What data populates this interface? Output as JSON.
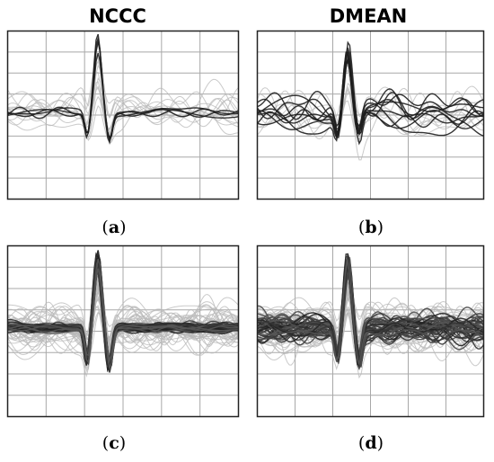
{
  "column_titles": {
    "left": "NCCC",
    "right": "DMEAN"
  },
  "panel_labels": {
    "a": "a",
    "b": "b",
    "c": "c",
    "d": "d"
  },
  "chart_data": [
    {
      "type": "line",
      "panel": "a",
      "column": "NCCC",
      "grid": true,
      "grid_columns": 6,
      "grid_rows": 8,
      "highlighted_traces": 4,
      "background_traces": 12,
      "spike_peak_position": 0.39,
      "spike_peak_height": 0.83,
      "spike_trough_depth": 0.28,
      "highlighted_spread": 0.12,
      "background_spread": 0.45,
      "seed": 11
    },
    {
      "type": "line",
      "panel": "b",
      "column": "DMEAN",
      "grid": true,
      "grid_columns": 6,
      "grid_rows": 8,
      "highlighted_traces": 9,
      "background_traces": 8,
      "spike_peak_position": 0.4,
      "spike_peak_height": 0.7,
      "spike_trough_depth": 0.25,
      "highlighted_spread": 0.38,
      "background_spread": 0.45,
      "seed": 23
    },
    {
      "type": "line",
      "panel": "c",
      "column": "NCCC",
      "grid": true,
      "grid_columns": 6,
      "grid_rows": 8,
      "highlighted_traces": 45,
      "background_traces": 40,
      "spike_peak_position": 0.39,
      "spike_peak_height": 0.8,
      "spike_trough_depth": 0.4,
      "highlighted_spread": 0.1,
      "background_spread": 0.45,
      "seed": 37
    },
    {
      "type": "line",
      "panel": "d",
      "column": "DMEAN",
      "grid": true,
      "grid_columns": 6,
      "grid_rows": 8,
      "highlighted_traces": 40,
      "background_traces": 40,
      "spike_peak_position": 0.4,
      "spike_peak_height": 0.78,
      "spike_trough_depth": 0.35,
      "highlighted_spread": 0.28,
      "background_spread": 0.45,
      "seed": 51
    }
  ],
  "colors": {
    "frame": "#222222",
    "grid": "#a8a8a8",
    "highlighted_trace": "#1e1e1e",
    "background_trace": "#b8b8b8"
  }
}
